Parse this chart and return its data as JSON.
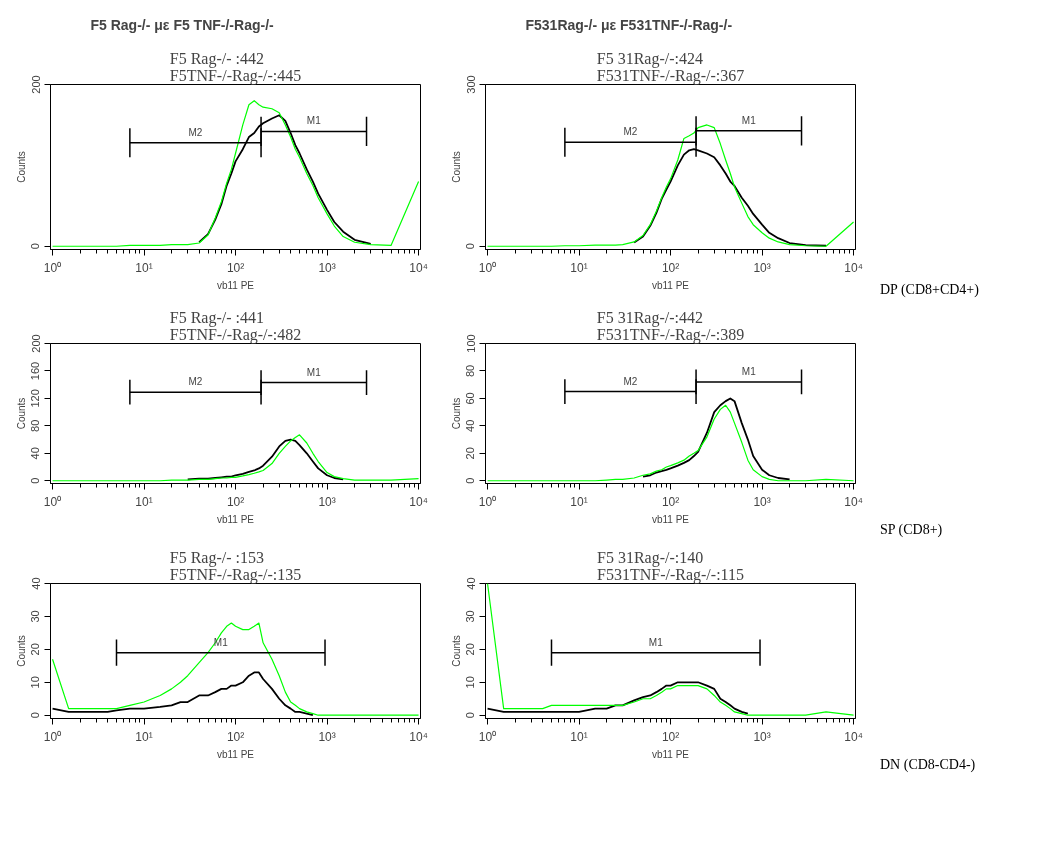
{
  "chart_data": [
    {
      "type": "line",
      "title": "F5 Rag-/- :442\nF5TNF-/-Rag-/-:445",
      "xlabel": "vb11 PE",
      "ylabel": "Counts",
      "log": "x",
      "annotations": [
        "F5 Rag-/-  με F5 TNF-/-Rag-/-"
      ],
      "x": [
        1,
        1.5,
        2,
        3,
        4,
        5,
        7,
        10,
        15,
        20,
        25,
        30,
        40,
        50,
        60,
        70,
        80,
        90,
        100,
        120,
        140,
        160,
        180,
        200,
        250,
        300,
        350,
        400,
        450,
        500,
        600,
        700,
        800,
        1000,
        1200,
        1500,
        2000,
        3000,
        5000,
        10000
      ],
      "xlim": [
        0.95,
        10500
      ],
      "xticks": [
        {
          "value": 1,
          "label": "10⁰"
        },
        {
          "value": 10,
          "label": "10¹"
        },
        {
          "value": 100,
          "label": "10²"
        },
        {
          "value": 1000,
          "label": "10³"
        },
        {
          "value": 10000,
          "label": "10⁴"
        }
      ],
      "ylim": [
        -4,
        200
      ],
      "yticks": [
        0,
        200
      ],
      "series": [
        {
          "color": "#000000",
          "values": [
            null,
            null,
            null,
            null,
            null,
            null,
            null,
            null,
            null,
            null,
            null,
            null,
            5,
            15,
            33,
            52,
            75,
            90,
            105,
            120,
            135,
            140,
            148,
            152,
            158,
            162,
            155,
            140,
            125,
            115,
            95,
            80,
            65,
            45,
            30,
            18,
            8,
            3,
            null,
            null
          ]
        },
        {
          "color": "#00ff00",
          "values": [
            0,
            0,
            0,
            0,
            0,
            0,
            1,
            1,
            1,
            2,
            2,
            2,
            4,
            14,
            35,
            55,
            78,
            95,
            115,
            150,
            175,
            180,
            175,
            172,
            170,
            165,
            150,
            135,
            120,
            110,
            90,
            75,
            60,
            40,
            25,
            12,
            5,
            2,
            1,
            80
          ]
        },
        {
          "name": "M2",
          "color": "#000000",
          "x": [
            7,
            190
          ],
          "values": [
            128,
            128
          ],
          "errors": [
            18,
            18
          ]
        },
        {
          "name": "M1",
          "color": "#000000",
          "x": [
            190,
            2700
          ],
          "values": [
            142,
            142
          ],
          "errors": [
            18,
            18
          ]
        }
      ]
    },
    {
      "type": "line",
      "title": "F5 31Rag-/-:424\nF531TNF-/-Rag-/-:367",
      "xlabel": "vb11 PE",
      "ylabel": "Counts",
      "log": "x",
      "annotations": [
        "F531Rag-/- με F531TNF-/-Rag-/-",
        "DP (CD8+CD4+)"
      ],
      "x": [
        1,
        1.5,
        2,
        3,
        4,
        5,
        7,
        10,
        15,
        20,
        25,
        30,
        40,
        50,
        60,
        70,
        80,
        90,
        100,
        120,
        140,
        160,
        180,
        200,
        250,
        300,
        350,
        400,
        450,
        500,
        600,
        700,
        800,
        1000,
        1200,
        1500,
        2000,
        3000,
        5000,
        10000
      ],
      "xlim": [
        0.95,
        10500
      ],
      "xticks": [
        {
          "value": 1,
          "label": "10⁰"
        },
        {
          "value": 10,
          "label": "10¹"
        },
        {
          "value": 100,
          "label": "10²"
        },
        {
          "value": 1000,
          "label": "10³"
        },
        {
          "value": 10000,
          "label": "10⁴"
        }
      ],
      "ylim": [
        -6,
        300
      ],
      "yticks": [
        0,
        300
      ],
      "series": [
        {
          "color": "#000000",
          "values": [
            null,
            null,
            null,
            null,
            null,
            null,
            null,
            null,
            null,
            null,
            null,
            null,
            7,
            18,
            38,
            62,
            88,
            105,
            120,
            150,
            170,
            178,
            180,
            178,
            172,
            165,
            150,
            135,
            120,
            112,
            90,
            75,
            60,
            40,
            25,
            15,
            6,
            2,
            1,
            null
          ]
        },
        {
          "color": "#00ff00",
          "values": [
            0,
            0,
            0,
            0,
            0,
            0,
            1,
            1,
            2,
            2,
            2,
            3,
            8,
            20,
            40,
            65,
            90,
            110,
            125,
            160,
            200,
            205,
            210,
            220,
            225,
            220,
            190,
            160,
            135,
            110,
            80,
            55,
            40,
            25,
            15,
            8,
            3,
            1,
            0,
            45
          ]
        },
        {
          "name": "M2",
          "color": "#000000",
          "x": [
            7,
            190
          ],
          "values": [
            193,
            193
          ],
          "errors": [
            27,
            27
          ]
        },
        {
          "name": "M1",
          "color": "#000000",
          "x": [
            190,
            2700
          ],
          "values": [
            214,
            214
          ],
          "errors": [
            27,
            27
          ]
        }
      ]
    },
    {
      "type": "line",
      "title": "F5 Rag-/- :441\nF5TNF-/-Rag-/-:482",
      "xlabel": "vb11 PE",
      "ylabel": "Counts",
      "log": "x",
      "x": [
        1,
        1.5,
        2,
        3,
        4,
        5,
        7,
        10,
        15,
        20,
        25,
        30,
        40,
        50,
        60,
        70,
        80,
        90,
        100,
        120,
        140,
        160,
        180,
        200,
        250,
        300,
        350,
        400,
        450,
        500,
        600,
        700,
        800,
        1000,
        1200,
        1500,
        2000,
        3000,
        5000,
        10000
      ],
      "xlim": [
        0.95,
        10500
      ],
      "xticks": [
        {
          "value": 1,
          "label": "10⁰"
        },
        {
          "value": 10,
          "label": "10¹"
        },
        {
          "value": 100,
          "label": "10²"
        },
        {
          "value": 1000,
          "label": "10³"
        },
        {
          "value": 10000,
          "label": "10⁴"
        }
      ],
      "ylim": [
        -4,
        200
      ],
      "yticks": [
        0,
        40,
        80,
        120,
        160,
        200
      ],
      "series": [
        {
          "color": "#000000",
          "values": [
            null,
            null,
            null,
            null,
            null,
            null,
            null,
            null,
            null,
            null,
            null,
            2,
            3,
            3,
            4,
            5,
            6,
            6,
            8,
            10,
            13,
            15,
            18,
            22,
            35,
            50,
            58,
            60,
            58,
            52,
            40,
            28,
            18,
            8,
            4,
            2,
            null,
            null,
            null,
            null
          ]
        },
        {
          "color": "#00ff00",
          "values": [
            0,
            0,
            0,
            0,
            0,
            0,
            0,
            0,
            0,
            1,
            1,
            1,
            2,
            2,
            3,
            4,
            4,
            5,
            5,
            7,
            9,
            11,
            13,
            15,
            25,
            40,
            50,
            58,
            63,
            67,
            55,
            40,
            28,
            12,
            6,
            3,
            1,
            1,
            1,
            3
          ]
        },
        {
          "name": "M2",
          "color": "#000000",
          "x": [
            7,
            190
          ],
          "values": [
            129,
            129
          ],
          "errors": [
            18,
            18
          ]
        },
        {
          "name": "M1",
          "color": "#000000",
          "x": [
            190,
            2700
          ],
          "values": [
            143,
            143
          ],
          "errors": [
            18,
            18
          ]
        }
      ]
    },
    {
      "type": "line",
      "title": "F5 31Rag-/-:442\nF531TNF-/-Rag-/-:389",
      "xlabel": "vb11 PE",
      "ylabel": "Counts",
      "log": "x",
      "annotations": [
        "SP (CD8+)"
      ],
      "x": [
        1,
        1.5,
        2,
        3,
        4,
        5,
        7,
        10,
        15,
        20,
        25,
        30,
        40,
        50,
        60,
        70,
        80,
        90,
        100,
        120,
        140,
        160,
        180,
        200,
        250,
        300,
        350,
        400,
        450,
        500,
        600,
        700,
        800,
        1000,
        1200,
        1500,
        2000,
        3000,
        5000,
        10000
      ],
      "xlim": [
        0.95,
        10500
      ],
      "xticks": [
        {
          "value": 1,
          "label": "10⁰"
        },
        {
          "value": 10,
          "label": "10¹"
        },
        {
          "value": 100,
          "label": "10²"
        },
        {
          "value": 1000,
          "label": "10³"
        },
        {
          "value": 10000,
          "label": "10⁴"
        }
      ],
      "ylim": [
        -2,
        100
      ],
      "yticks": [
        0,
        20,
        40,
        60,
        80,
        100
      ],
      "series": [
        {
          "color": "#000000",
          "values": [
            null,
            null,
            null,
            null,
            null,
            null,
            null,
            null,
            null,
            null,
            null,
            null,
            null,
            3,
            4,
            6,
            7,
            8,
            9,
            11,
            13,
            15,
            18,
            21,
            35,
            50,
            55,
            58,
            60,
            58,
            42,
            30,
            18,
            8,
            4,
            2,
            1,
            null,
            null,
            null
          ]
        },
        {
          "color": "#00ff00",
          "values": [
            0,
            0,
            0,
            0,
            0,
            0,
            0,
            0,
            0,
            0.5,
            1,
            1,
            2,
            4,
            5,
            7,
            8,
            10,
            11,
            13,
            15,
            18,
            20,
            22,
            32,
            45,
            52,
            55,
            50,
            42,
            28,
            15,
            8,
            3,
            1,
            0,
            0,
            0,
            1,
            0
          ]
        },
        {
          "name": "M2",
          "color": "#000000",
          "x": [
            7,
            190
          ],
          "values": [
            65,
            65
          ],
          "errors": [
            9,
            9
          ]
        },
        {
          "name": "M1",
          "color": "#000000",
          "x": [
            190,
            2700
          ],
          "values": [
            72,
            72
          ],
          "errors": [
            9,
            9
          ]
        }
      ]
    },
    {
      "type": "line",
      "title": "F5 Rag-/- :153\nF5TNF-/-Rag-/-:135",
      "xlabel": "vb11 PE",
      "ylabel": "Counts",
      "log": "x",
      "x": [
        1,
        1.5,
        2,
        3,
        4,
        5,
        7,
        10,
        15,
        20,
        25,
        30,
        40,
        50,
        60,
        70,
        80,
        90,
        100,
        120,
        140,
        160,
        180,
        200,
        250,
        300,
        350,
        400,
        450,
        500,
        600,
        700,
        800,
        1000,
        1200,
        1500,
        2000,
        3000,
        5000,
        10000
      ],
      "xlim": [
        0.95,
        10500
      ],
      "xticks": [
        {
          "value": 1,
          "label": "10⁰"
        },
        {
          "value": 10,
          "label": "10¹"
        },
        {
          "value": 100,
          "label": "10²"
        },
        {
          "value": 1000,
          "label": "10³"
        },
        {
          "value": 10000,
          "label": "10⁴"
        }
      ],
      "ylim": [
        -1,
        40
      ],
      "yticks": [
        0,
        10,
        20,
        30,
        40
      ],
      "series": [
        {
          "color": "#000000",
          "values": [
            2,
            1,
            1,
            1,
            1,
            1.5,
            2,
            2,
            2.5,
            3,
            4,
            4,
            6,
            6,
            7,
            8,
            8,
            9,
            9,
            10,
            12,
            13,
            13,
            11,
            8,
            5,
            3,
            2,
            1,
            1,
            0.5,
            0,
            null,
            null,
            null,
            null,
            null,
            null,
            null,
            null
          ]
        },
        {
          "color": "#00ff00",
          "values": [
            17,
            2,
            2,
            2,
            2,
            2,
            3,
            4,
            6,
            8,
            10,
            12,
            16,
            19,
            22,
            25,
            27,
            28,
            27,
            26,
            26,
            27,
            28,
            22,
            17,
            12,
            7,
            4,
            3,
            2,
            1,
            0.5,
            0,
            0,
            0,
            0,
            0,
            0,
            0,
            0
          ]
        },
        {
          "name": "M1",
          "color": "#000000",
          "x": [
            5,
            950
          ],
          "values": [
            19,
            19
          ],
          "errors": [
            4,
            4
          ]
        }
      ]
    },
    {
      "type": "line",
      "title": "F5 31Rag-/-:140\nF531TNF-/-Rag-/-:115",
      "xlabel": "vb11 PE",
      "ylabel": "Counts",
      "log": "x",
      "annotations": [
        "DN (CD8-CD4-)"
      ],
      "x": [
        1,
        1.5,
        2,
        3,
        4,
        5,
        7,
        10,
        15,
        20,
        25,
        30,
        40,
        50,
        60,
        70,
        80,
        90,
        100,
        120,
        140,
        160,
        180,
        200,
        250,
        300,
        350,
        400,
        450,
        500,
        600,
        700,
        800,
        1000,
        1200,
        1500,
        2000,
        3000,
        5000,
        10000
      ],
      "xlim": [
        0.95,
        10500
      ],
      "xticks": [
        {
          "value": 1,
          "label": "10⁰"
        },
        {
          "value": 10,
          "label": "10¹"
        },
        {
          "value": 100,
          "label": "10²"
        },
        {
          "value": 1000,
          "label": "10³"
        },
        {
          "value": 10000,
          "label": "10⁴"
        }
      ],
      "ylim": [
        -1,
        40
      ],
      "yticks": [
        0,
        10,
        20,
        30,
        40
      ],
      "series": [
        {
          "color": "#000000",
          "values": [
            2,
            1,
            1,
            1,
            1,
            1,
            1,
            1,
            2,
            2,
            3,
            3,
            4.5,
            5.5,
            6,
            7,
            8,
            9,
            9,
            10,
            10,
            10,
            10,
            10,
            9,
            8,
            5,
            4,
            3,
            2,
            1,
            0.5,
            null,
            null,
            null,
            null,
            null,
            null,
            null,
            null
          ]
        },
        {
          "color": "#00ff00",
          "values": [
            40,
            2,
            2,
            2,
            2,
            3,
            3,
            3,
            3,
            3,
            3,
            3,
            4,
            5,
            5,
            6,
            7,
            8,
            8,
            9,
            9,
            9,
            9,
            9,
            8,
            6,
            4,
            3,
            2,
            1,
            0.5,
            0,
            0,
            0,
            0,
            0,
            0,
            0,
            1,
            0
          ]
        },
        {
          "name": "M1",
          "color": "#000000",
          "x": [
            5,
            950
          ],
          "values": [
            19,
            19
          ],
          "errors": [
            4,
            4
          ]
        }
      ]
    }
  ]
}
